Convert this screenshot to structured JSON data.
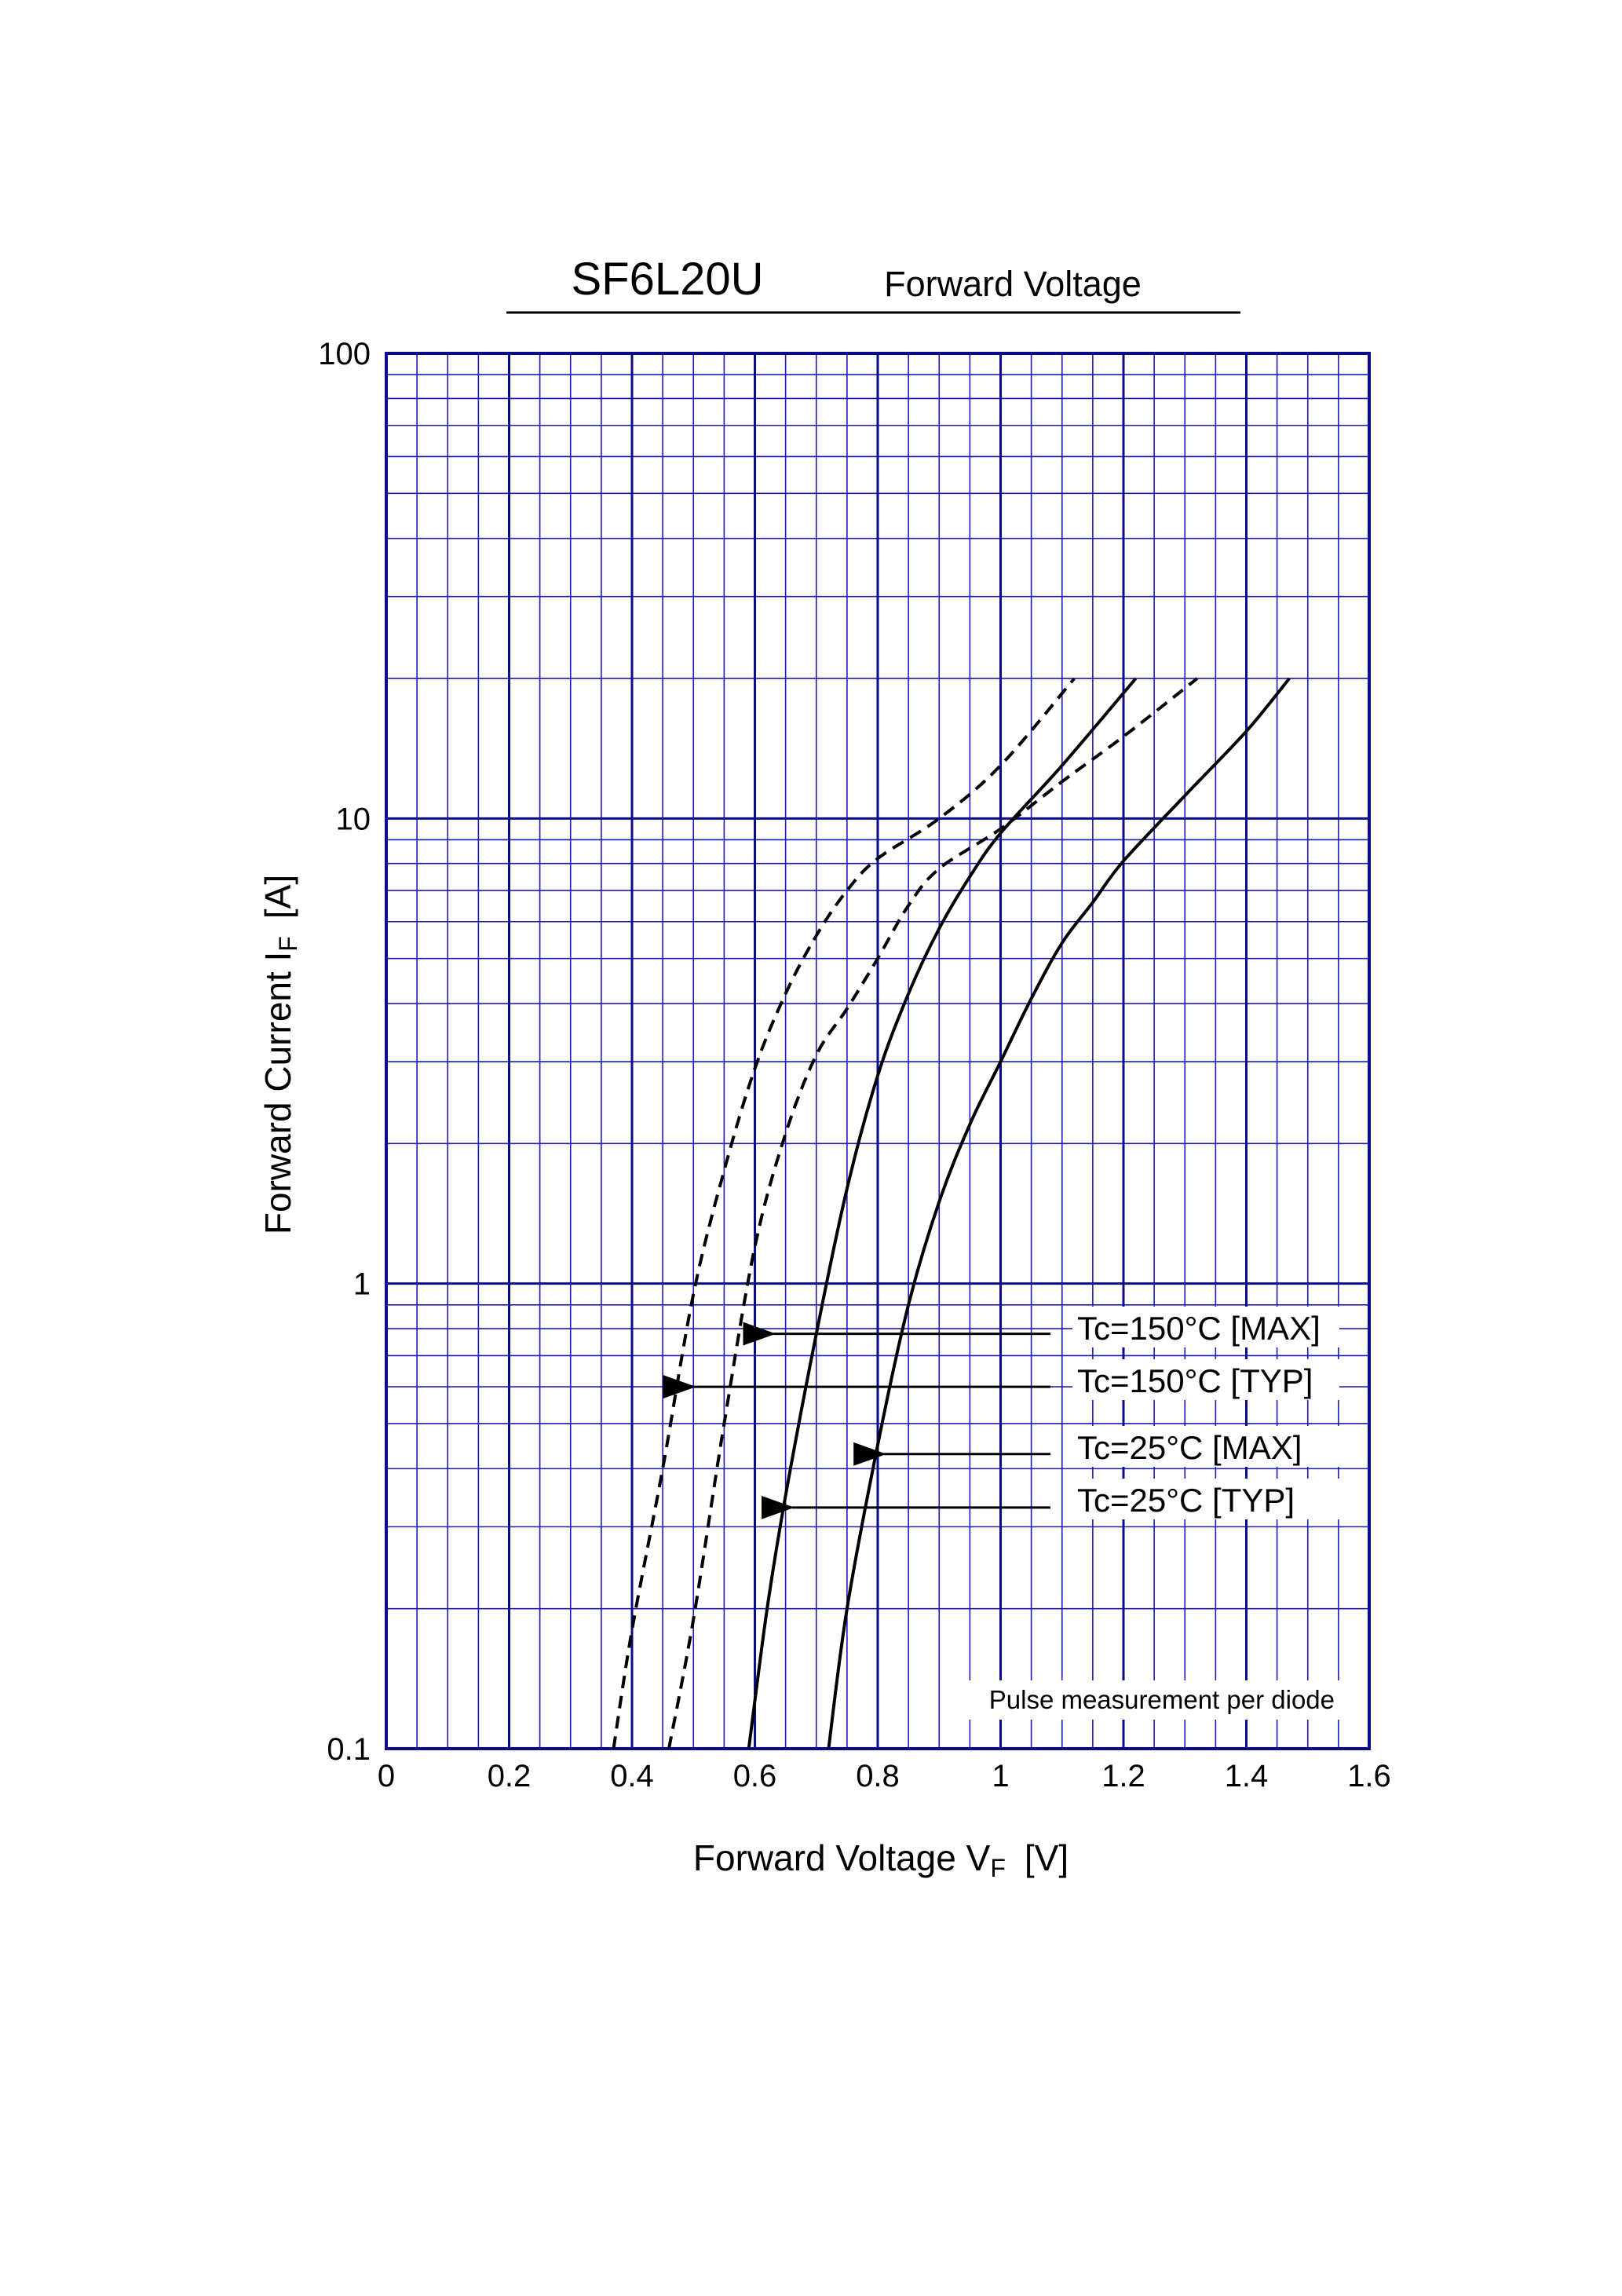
{
  "chart_data": {
    "type": "line",
    "title": "SF6L20U",
    "subtitle": "Forward Voltage",
    "xlabel": {
      "main": "Forward Voltage  V",
      "sub": "F",
      "unit": "[V]"
    },
    "ylabel": {
      "main": "Forward Current  I",
      "sub": "F",
      "unit": "[A]"
    },
    "xlim": [
      0,
      1.6
    ],
    "ylim": [
      0.1,
      100
    ],
    "yscale": "log",
    "grid": true,
    "grid_color": "#1a1ab4",
    "grid_major_color": "#0a0a8c",
    "line_color": "#000000",
    "x_ticks": [
      0,
      0.2,
      0.4,
      0.6,
      0.8,
      1,
      1.2,
      1.4,
      1.6
    ],
    "x_tick_labels": [
      "0",
      "0.2",
      "0.4",
      "0.6",
      "0.8",
      "1",
      "1.2",
      "1.4",
      "1.6"
    ],
    "y_ticks": [
      0.1,
      1,
      10,
      100
    ],
    "y_tick_labels": [
      "0.1",
      "1",
      "10",
      "100"
    ],
    "note": "Pulse measurement per diode",
    "series": [
      {
        "name": "Tc=150°C [MAX]",
        "dash": true,
        "points": [
          [
            0.46,
            0.1
          ],
          [
            0.5,
            0.19
          ],
          [
            0.55,
            0.5
          ],
          [
            0.6,
            1.2
          ],
          [
            0.65,
            2.1
          ],
          [
            0.7,
            3.1
          ],
          [
            0.75,
            3.9
          ],
          [
            0.8,
            5.0
          ],
          [
            0.85,
            6.5
          ],
          [
            0.9,
            7.8
          ],
          [
            1.0,
            9.5
          ],
          [
            1.1,
            12.0
          ],
          [
            1.2,
            15.0
          ],
          [
            1.32,
            20.0
          ]
        ]
      },
      {
        "name": "Tc=150°C [TYP]",
        "dash": true,
        "points": [
          [
            0.37,
            0.1
          ],
          [
            0.4,
            0.18
          ],
          [
            0.45,
            0.4
          ],
          [
            0.5,
            0.95
          ],
          [
            0.55,
            1.75
          ],
          [
            0.6,
            2.9
          ],
          [
            0.65,
            4.2
          ],
          [
            0.7,
            5.6
          ],
          [
            0.75,
            7.0
          ],
          [
            0.8,
            8.2
          ],
          [
            0.9,
            10.0
          ],
          [
            1.0,
            13.0
          ],
          [
            1.12,
            20.0
          ]
        ]
      },
      {
        "name": "Tc=25°C [MAX]",
        "dash": false,
        "points": [
          [
            0.72,
            0.1
          ],
          [
            0.75,
            0.2
          ],
          [
            0.8,
            0.45
          ],
          [
            0.85,
            0.9
          ],
          [
            0.9,
            1.5
          ],
          [
            0.95,
            2.2
          ],
          [
            1.0,
            3.0
          ],
          [
            1.05,
            4.1
          ],
          [
            1.1,
            5.4
          ],
          [
            1.15,
            6.6
          ],
          [
            1.2,
            8.1
          ],
          [
            1.3,
            11.2
          ],
          [
            1.4,
            15.4
          ],
          [
            1.47,
            20.0
          ]
        ]
      },
      {
        "name": "Tc=25°C [TYP]",
        "dash": false,
        "points": [
          [
            0.59,
            0.1
          ],
          [
            0.62,
            0.2
          ],
          [
            0.65,
            0.35
          ],
          [
            0.7,
            0.78
          ],
          [
            0.75,
            1.6
          ],
          [
            0.8,
            2.8
          ],
          [
            0.85,
            4.2
          ],
          [
            0.9,
            5.8
          ],
          [
            0.95,
            7.5
          ],
          [
            1.0,
            9.3
          ],
          [
            1.1,
            13.0
          ],
          [
            1.22,
            20.0
          ]
        ]
      }
    ],
    "annotations": [
      {
        "label": "Tc=150°C [MAX]",
        "arrow_to": [
          0.61,
          0.78
        ]
      },
      {
        "label": "Tc=150°C [TYP]",
        "arrow_to": [
          0.48,
          0.6
        ]
      },
      {
        "label": "Tc=25°C [MAX]",
        "arrow_to": [
          0.79,
          0.43
        ]
      },
      {
        "label": "Tc=25°C [TYP]",
        "arrow_to": [
          0.64,
          0.33
        ]
      }
    ]
  }
}
